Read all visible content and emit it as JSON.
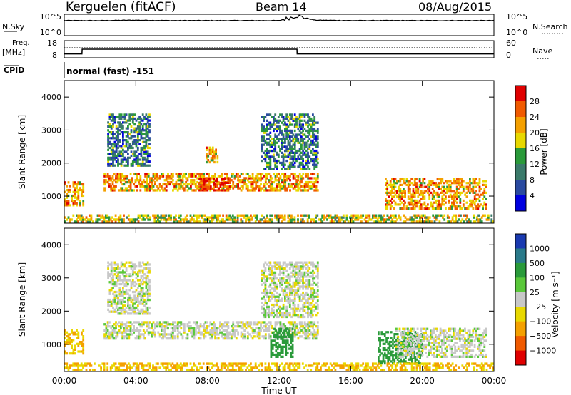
{
  "header": {
    "station": "Kerguelen (fitACF)",
    "beam": "Beam 14",
    "date": "08/Aug/2015"
  },
  "top_panels": {
    "nsky_label": "N.Sky",
    "nsky_ticks": [
      "10^5",
      "10^0"
    ],
    "nsearch_label": "N.Search",
    "nsearch_ticks": [
      "10^5",
      "10^0"
    ],
    "freq_label_1": "Freq.",
    "freq_label_2": "[MHz]",
    "freq_ticks": [
      "18",
      "8"
    ],
    "nave_label": "Nave",
    "nave_ticks": [
      "60",
      "0"
    ],
    "cpid_label": "CPID",
    "cpid_value": "normal (fast) -151"
  },
  "power_panel": {
    "ylabel": "Slant Range [km]",
    "yticks": [
      "4000",
      "3000",
      "2000",
      "1000"
    ],
    "colorbar_label": "Power [dB]",
    "colorbar_ticks": [
      "28",
      "24",
      "20",
      "16",
      "12",
      "8",
      "4"
    ],
    "colorbar_colors": [
      "#e00000",
      "#f05a00",
      "#f4a000",
      "#e8d800",
      "#2a9a3a",
      "#3a7a6a",
      "#2a4aa0",
      "#0000e0"
    ]
  },
  "velocity_panel": {
    "ylabel": "Slant Range [km]",
    "yticks": [
      "4000",
      "3000",
      "2000",
      "1000"
    ],
    "colorbar_label": "Velocity [m s⁻¹]",
    "colorbar_ticks": [
      "1000",
      "500",
      "100",
      "25",
      "−25",
      "−100",
      "−500",
      "−1000"
    ],
    "colorbar_colors": [
      "#1a3ab0",
      "#2a7a8a",
      "#2a9a3a",
      "#5ac83a",
      "#c8c8c8",
      "#e8d800",
      "#f4a000",
      "#f05a00",
      "#e00000"
    ]
  },
  "xaxis": {
    "label": "Time UT",
    "ticks": [
      "00:00",
      "04:00",
      "08:00",
      "12:00",
      "16:00",
      "20:00",
      "00:00"
    ]
  },
  "chart_data": [
    {
      "type": "line",
      "title": "N.Sky / N.Search",
      "x_hours": [
        0,
        1,
        2,
        4,
        6,
        8,
        10,
        12,
        13,
        14,
        16,
        18,
        20,
        22,
        24
      ],
      "series": [
        {
          "values_log10": [
            3.6,
            3.6,
            3.6,
            3.7,
            3.6,
            3.6,
            3.6,
            3.6,
            4.8,
            3.7,
            3.6,
            3.6,
            3.6,
            3.6,
            3.6
          ]
        }
      ]
    },
    {
      "type": "line",
      "title": "Freq. [MHz] / Nave",
      "x_hours": [
        0,
        0.99,
        1.0,
        13.0,
        13.01,
        24
      ],
      "series": [
        {
          "values_mhz": [
            10,
            10,
            13,
            13,
            10,
            10
          ]
        },
        {
          "values_nave": [
            35,
            35,
            35,
            35,
            35,
            35
          ]
        }
      ]
    },
    {
      "type": "heatmap",
      "title": "Power [dB]",
      "xlim": [
        0,
        24
      ],
      "ylim": [
        180,
        4500
      ],
      "regions": [
        {
          "t0": 0.0,
          "t1": 1.1,
          "r0": 700,
          "r1": 1450,
          "level": 20
        },
        {
          "t0": 2.2,
          "t1": 14.2,
          "r0": 1150,
          "r1": 1700,
          "level": 20
        },
        {
          "t0": 7.5,
          "t1": 9.3,
          "r0": 1150,
          "r1": 1550,
          "level": 26
        },
        {
          "t0": 2.4,
          "t1": 4.8,
          "r0": 1900,
          "r1": 3500,
          "level": 8
        },
        {
          "t0": 7.9,
          "t1": 8.6,
          "r0": 2000,
          "r1": 2500,
          "level": 20
        },
        {
          "t0": 11.0,
          "t1": 14.2,
          "r0": 1800,
          "r1": 3500,
          "level": 8
        },
        {
          "t0": 17.9,
          "t1": 23.6,
          "r0": 600,
          "r1": 1550,
          "level": 20
        },
        {
          "t0": 0.0,
          "t1": 24.0,
          "r0": 200,
          "r1": 450,
          "level": 16
        }
      ]
    },
    {
      "type": "heatmap",
      "title": "Velocity [m s^-1]",
      "xlim": [
        0,
        24
      ],
      "ylim": [
        180,
        4500
      ],
      "regions": [
        {
          "t0": 0.0,
          "t1": 1.1,
          "r0": 700,
          "r1": 1450,
          "level": -100
        },
        {
          "t0": 2.2,
          "t1": 14.2,
          "r0": 1150,
          "r1": 1700,
          "level": 0
        },
        {
          "t0": 2.4,
          "t1": 4.8,
          "r0": 1900,
          "r1": 3500,
          "level": 0
        },
        {
          "t0": 11.0,
          "t1": 14.2,
          "r0": 1800,
          "r1": 3500,
          "level": 0
        },
        {
          "t0": 11.5,
          "t1": 12.8,
          "r0": 600,
          "r1": 1500,
          "level": 200
        },
        {
          "t0": 17.5,
          "t1": 20.0,
          "r0": 400,
          "r1": 1400,
          "level": 200
        },
        {
          "t0": 18.5,
          "t1": 23.6,
          "r0": 600,
          "r1": 1500,
          "level": 0
        },
        {
          "t0": 0.0,
          "t1": 24.0,
          "r0": 200,
          "r1": 450,
          "level": -100
        }
      ]
    }
  ]
}
